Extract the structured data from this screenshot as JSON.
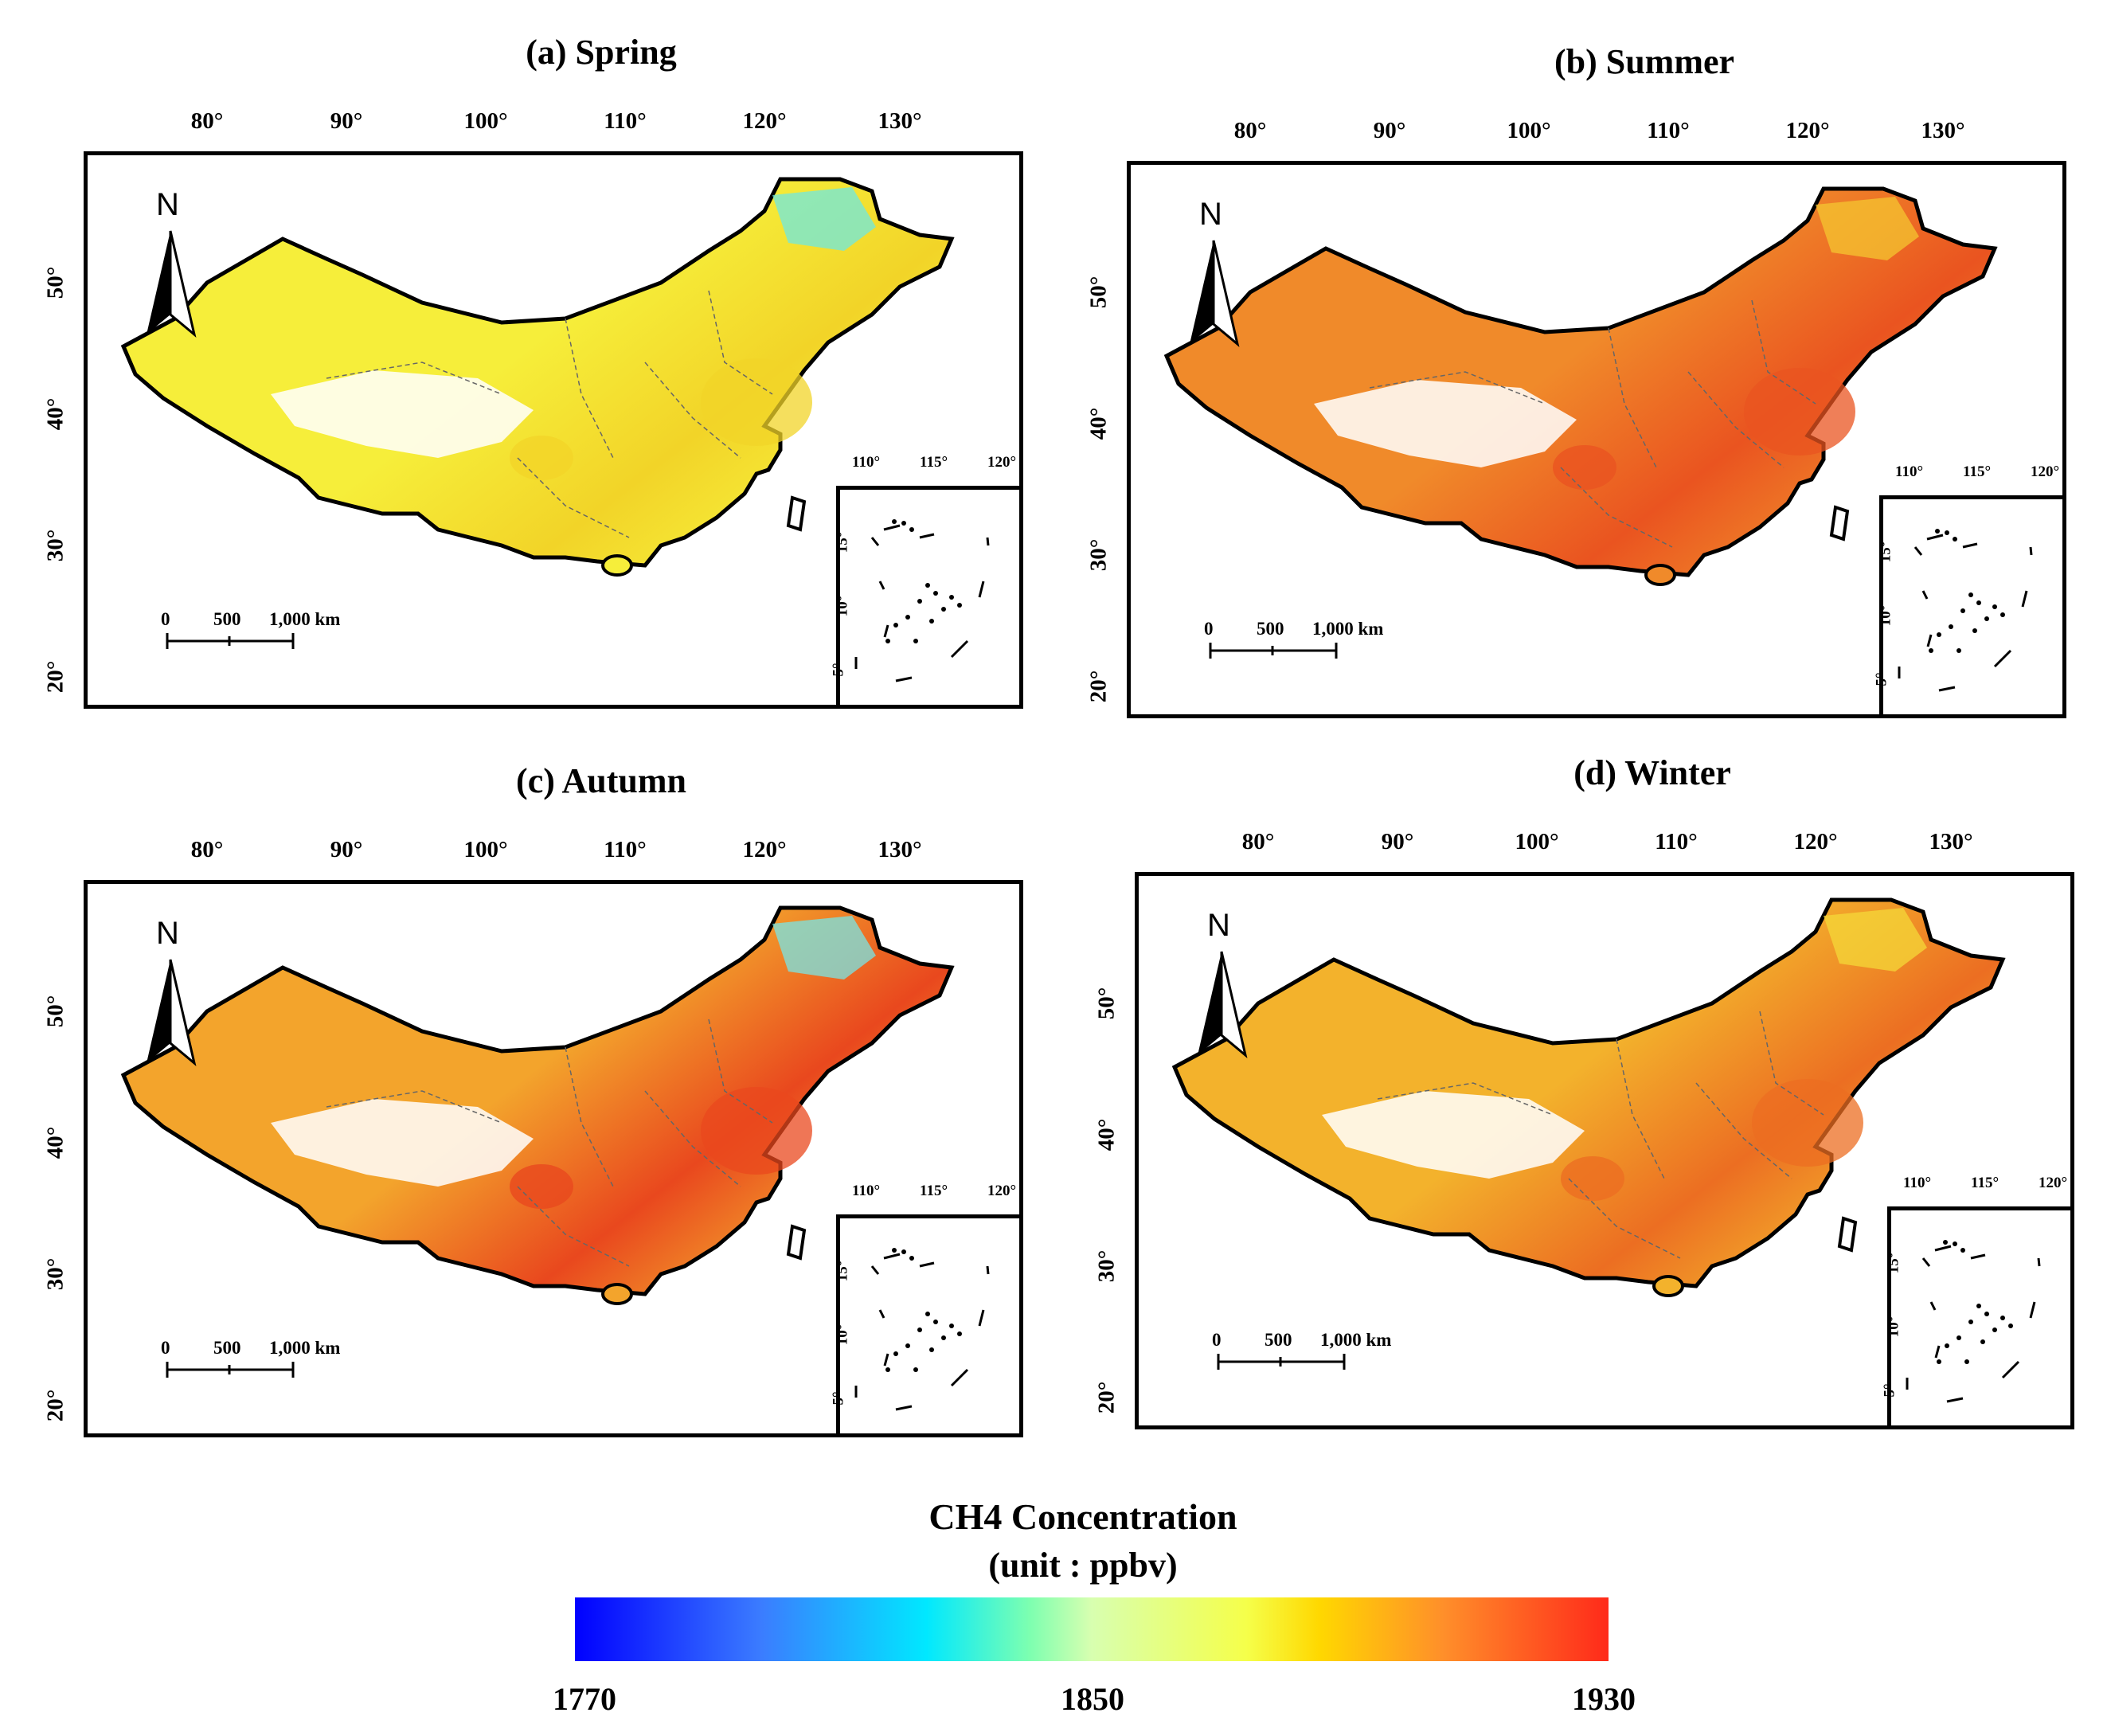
{
  "panels": [
    {
      "title": "(a) Spring",
      "lon_labels": [
        "80°",
        "90°",
        "100°",
        "110°",
        "120°",
        "130°"
      ],
      "lat_labels": [
        "50°",
        "40°",
        "30°",
        "20°"
      ],
      "north": "N",
      "scale": [
        "0",
        "500",
        "1,000 km"
      ],
      "inset_lon": [
        "110°",
        "115°",
        "120°"
      ],
      "inset_lat": [
        "15°",
        "10°",
        "5°"
      ],
      "season_level": "low"
    },
    {
      "title": "(b) Summer",
      "lon_labels": [
        "80°",
        "90°",
        "100°",
        "110°",
        "120°",
        "130°"
      ],
      "lat_labels": [
        "50°",
        "40°",
        "30°",
        "20°"
      ],
      "north": "N",
      "scale": [
        "0",
        "500",
        "1,000 km"
      ],
      "inset_lon": [
        "110°",
        "115°",
        "120°"
      ],
      "inset_lat": [
        "15°",
        "10°",
        "5°"
      ],
      "season_level": "high"
    },
    {
      "title": "(c) Autumn",
      "lon_labels": [
        "80°",
        "90°",
        "100°",
        "110°",
        "120°",
        "130°"
      ],
      "lat_labels": [
        "50°",
        "40°",
        "30°",
        "20°"
      ],
      "north": "N",
      "scale": [
        "0",
        "500",
        "1,000 km"
      ],
      "inset_lon": [
        "110°",
        "115°",
        "120°"
      ],
      "inset_lat": [
        "15°",
        "10°",
        "5°"
      ],
      "season_level": "very-high"
    },
    {
      "title": "(d) Winter",
      "lon_labels": [
        "80°",
        "90°",
        "100°",
        "110°",
        "120°",
        "130°"
      ],
      "lat_labels": [
        "50°",
        "40°",
        "30°",
        "20°"
      ],
      "north": "N",
      "scale": [
        "0",
        "500",
        "1,000 km"
      ],
      "inset_lon": [
        "110°",
        "115°",
        "120°"
      ],
      "inset_lat": [
        "15°",
        "10°",
        "5°"
      ],
      "season_level": "mid"
    }
  ],
  "colorbar": {
    "title": "CH4 Concentration",
    "unit": "(unit : ppbv)",
    "min": "1770",
    "mid": "1850",
    "max": "1930",
    "colors": [
      "#0000ff",
      "#00e8ff",
      "#f5ff4a",
      "#ff2a1a"
    ]
  }
}
